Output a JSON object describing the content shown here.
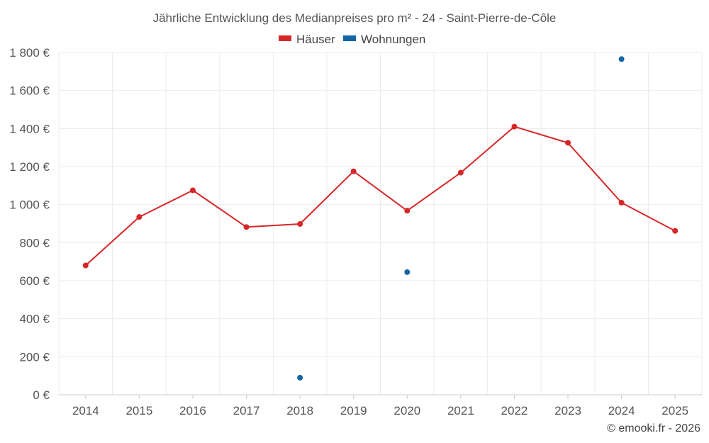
{
  "chart_data": {
    "type": "line",
    "title": "Jährliche Entwicklung des Medianpreises pro m² - 24 - Saint-Pierre-de-Côle",
    "xlabel": "",
    "ylabel": "",
    "categories": [
      "2014",
      "2015",
      "2016",
      "2017",
      "2018",
      "2019",
      "2020",
      "2021",
      "2022",
      "2023",
      "2024",
      "2025"
    ],
    "ylim": [
      0,
      1800
    ],
    "yticks": [
      0,
      200,
      400,
      600,
      800,
      1000,
      1200,
      1400,
      1600,
      1800
    ],
    "ytick_labels": [
      "0 €",
      "200 €",
      "400 €",
      "600 €",
      "800 €",
      "1 000 €",
      "1 200 €",
      "1 400 €",
      "1 600 €",
      "1 800 €"
    ],
    "grid": true,
    "legend_position": "top-center",
    "series": [
      {
        "name": "Häuser",
        "color": "#d62728",
        "style": "line-markers",
        "values": [
          680,
          935,
          1075,
          882,
          898,
          1175,
          968,
          1168,
          1410,
          1325,
          1010,
          862
        ]
      },
      {
        "name": "Wohnungen",
        "color": "#1565a7",
        "style": "markers",
        "values": [
          null,
          null,
          null,
          null,
          90,
          null,
          645,
          null,
          null,
          null,
          1765,
          null
        ]
      }
    ]
  },
  "credit": "© emooki.fr - 2026"
}
